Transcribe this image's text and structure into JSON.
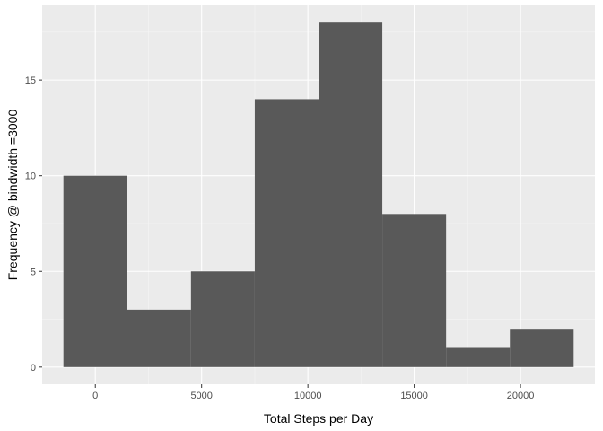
{
  "chart_data": {
    "type": "bar",
    "subtype": "histogram",
    "bins": [
      {
        "start": -1500,
        "end": 1500,
        "count": 10
      },
      {
        "start": 1500,
        "end": 4500,
        "count": 3
      },
      {
        "start": 4500,
        "end": 7500,
        "count": 5
      },
      {
        "start": 7500,
        "end": 10500,
        "count": 14
      },
      {
        "start": 10500,
        "end": 13500,
        "count": 18
      },
      {
        "start": 13500,
        "end": 16500,
        "count": 8
      },
      {
        "start": 16500,
        "end": 19500,
        "count": 1
      },
      {
        "start": 19500,
        "end": 22500,
        "count": 2
      }
    ],
    "xlabel": "Total Steps per Day",
    "ylabel": "Frequency @ bindwidth =3000",
    "xlim": [
      -2500,
      23500
    ],
    "ylim": [
      -0.9,
      18.9
    ],
    "x_ticks": [
      0,
      5000,
      10000,
      15000,
      20000
    ],
    "x_tick_labels": [
      "0",
      "5000",
      "10000",
      "15000",
      "20000"
    ],
    "y_ticks": [
      0,
      5,
      10,
      15
    ],
    "y_tick_labels": [
      "0",
      "5",
      "10",
      "15"
    ],
    "grid": true,
    "colors": {
      "bar": "#595959",
      "panel_background": "#ebebeb",
      "grid_major": "#ffffff",
      "grid_minor": "#f5f5f5"
    }
  }
}
